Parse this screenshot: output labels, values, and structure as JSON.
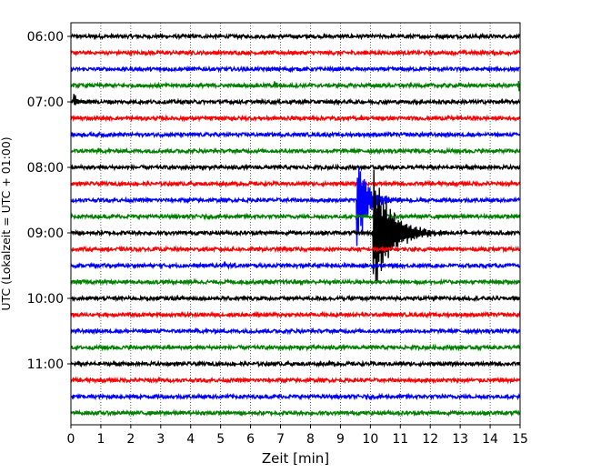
{
  "chart_data": {
    "type": "line",
    "title": "",
    "xlabel": "Zeit  [min]",
    "ylabel": "UTC (Lokalzeit = UTC + 01:00)",
    "xlim": [
      0,
      15
    ],
    "x_ticks": [
      0,
      1,
      2,
      3,
      4,
      5,
      6,
      7,
      8,
      9,
      10,
      11,
      12,
      13,
      14,
      15
    ],
    "y_tick_labels": [
      "06:00",
      "07:00",
      "08:00",
      "09:00",
      "10:00",
      "11:00"
    ],
    "row_interval_minutes": 15,
    "first_row": "06:00",
    "grid": "vertical dotted",
    "legend": "none",
    "color_cycle": [
      "#000000",
      "#ff0000",
      "#0000ff",
      "#008000"
    ],
    "rows": [
      {
        "start": "06:00",
        "color": "#000000",
        "noise": 0.12
      },
      {
        "start": "06:15",
        "color": "#ff0000",
        "noise": 0.12
      },
      {
        "start": "06:30",
        "color": "#0000ff",
        "noise": 0.12
      },
      {
        "start": "06:45",
        "color": "#008000",
        "noise": 0.12,
        "events": [
          {
            "t": 6.8,
            "amp": 0.35,
            "dur": 0.15
          },
          {
            "t": 14.92,
            "amp": 1.1,
            "dur": 0.08
          }
        ]
      },
      {
        "start": "07:00",
        "color": "#000000",
        "noise": 0.12,
        "events": [
          {
            "t": 0.1,
            "amp": 0.55,
            "dur": 0.25
          }
        ]
      },
      {
        "start": "07:15",
        "color": "#ff0000",
        "noise": 0.12
      },
      {
        "start": "07:30",
        "color": "#0000ff",
        "noise": 0.12
      },
      {
        "start": "07:45",
        "color": "#008000",
        "noise": 0.12
      },
      {
        "start": "08:00",
        "color": "#000000",
        "noise": 0.12
      },
      {
        "start": "08:15",
        "color": "#ff0000",
        "noise": 0.12
      },
      {
        "start": "08:30",
        "color": "#0000ff",
        "noise": 0.12,
        "events": [
          {
            "t": 9.55,
            "amp": 3.4,
            "dur": 0.7
          }
        ]
      },
      {
        "start": "08:45",
        "color": "#008000",
        "noise": 0.12
      },
      {
        "start": "09:00",
        "color": "#000000",
        "noise": 0.12,
        "events": [
          {
            "t": 10.1,
            "amp": 5.0,
            "dur": 1.1
          }
        ]
      },
      {
        "start": "09:15",
        "color": "#ff0000",
        "noise": 0.12
      },
      {
        "start": "09:30",
        "color": "#0000ff",
        "noise": 0.12,
        "events": [
          {
            "t": 5.1,
            "amp": 0.3,
            "dur": 0.15
          }
        ]
      },
      {
        "start": "09:45",
        "color": "#008000",
        "noise": 0.12
      },
      {
        "start": "10:00",
        "color": "#000000",
        "noise": 0.12
      },
      {
        "start": "10:15",
        "color": "#ff0000",
        "noise": 0.12
      },
      {
        "start": "10:30",
        "color": "#0000ff",
        "noise": 0.12
      },
      {
        "start": "10:45",
        "color": "#008000",
        "noise": 0.12
      },
      {
        "start": "11:00",
        "color": "#000000",
        "noise": 0.12
      },
      {
        "start": "11:15",
        "color": "#ff0000",
        "noise": 0.12
      },
      {
        "start": "11:30",
        "color": "#0000ff",
        "noise": 0.12
      },
      {
        "start": "11:45",
        "color": "#008000",
        "noise": 0.12
      }
    ]
  }
}
